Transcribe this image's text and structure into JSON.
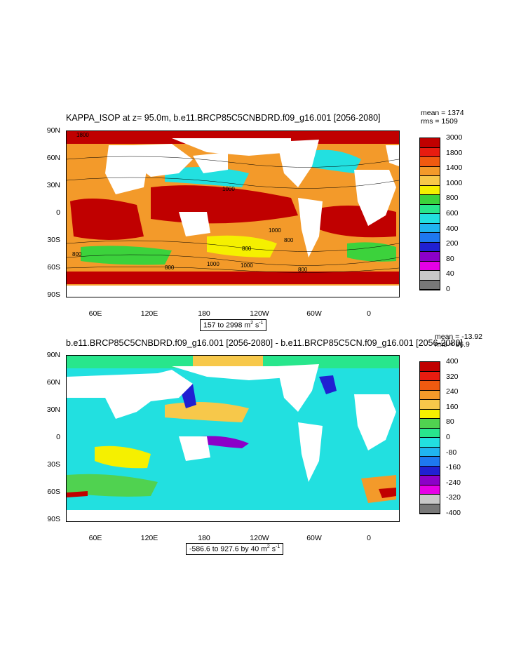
{
  "panels": [
    {
      "title": "KAPPA_ISOP at z=  95.0m, b.e11.BRCP85C5CNBDRD.f09_g16.001 [2056-2080]",
      "mean": "mean = 1374",
      "rms": "rms = 1509",
      "range": "157 to 2998 m",
      "range_sup": "2",
      "range_unit": " s",
      "range_unit_sup": "-1",
      "lat_labels": [
        "90N",
        "60N",
        "30N",
        "0",
        "30S",
        "60S",
        "90S"
      ],
      "lon_labels": [
        "60E",
        "120E",
        "180",
        "120W",
        "60W",
        "0"
      ],
      "colorbar_labels": [
        "3000",
        "1800",
        "1400",
        "1000",
        "800",
        "600",
        "400",
        "200",
        "80",
        "40",
        "0"
      ],
      "contour_labels": [
        "1800",
        "1000",
        "1000",
        "800",
        "1000",
        "800",
        "800",
        "1000",
        "800",
        "800"
      ]
    },
    {
      "title": "b.e11.BRCP85C5CNBDRD.f09_g16.001 [2056-2080] - b.e11.BRCP85C5CN.f09_g16.001 [2056-2080]",
      "mean": "mean = -13.92",
      "rms": "rms = 86.9",
      "range": "-586.6 to 927.6 by 40 m",
      "range_sup": "2",
      "range_unit": " s",
      "range_unit_sup": "-1",
      "lat_labels": [
        "90N",
        "60N",
        "30N",
        "0",
        "30S",
        "60S",
        "90S"
      ],
      "lon_labels": [
        "60E",
        "120E",
        "180",
        "120W",
        "60W",
        "0"
      ],
      "colorbar_labels": [
        "400",
        "320",
        "240",
        "160",
        "80",
        "0",
        "-80",
        "-160",
        "-240",
        "-320",
        "-400"
      ]
    }
  ],
  "colors": {
    "top_scale": [
      "#c00000",
      "#e81c10",
      "#f05a10",
      "#f39a2a",
      "#f7c84a",
      "#f5f000",
      "#3cd23c",
      "#28e68c",
      "#22e0e0",
      "#20b4f0",
      "#1e78f0",
      "#2020d2",
      "#8c00c8",
      "#e600e6",
      "#c8c8c8",
      "#787878"
    ],
    "diff_scale": [
      "#c00000",
      "#e81c10",
      "#f05a10",
      "#f39a2a",
      "#f7c84a",
      "#f5f000",
      "#50d250",
      "#28e68c",
      "#22e0e0",
      "#20b4f0",
      "#1e78f0",
      "#2020d2",
      "#8c00c8",
      "#e600e6",
      "#c8c8c8",
      "#787878"
    ]
  }
}
